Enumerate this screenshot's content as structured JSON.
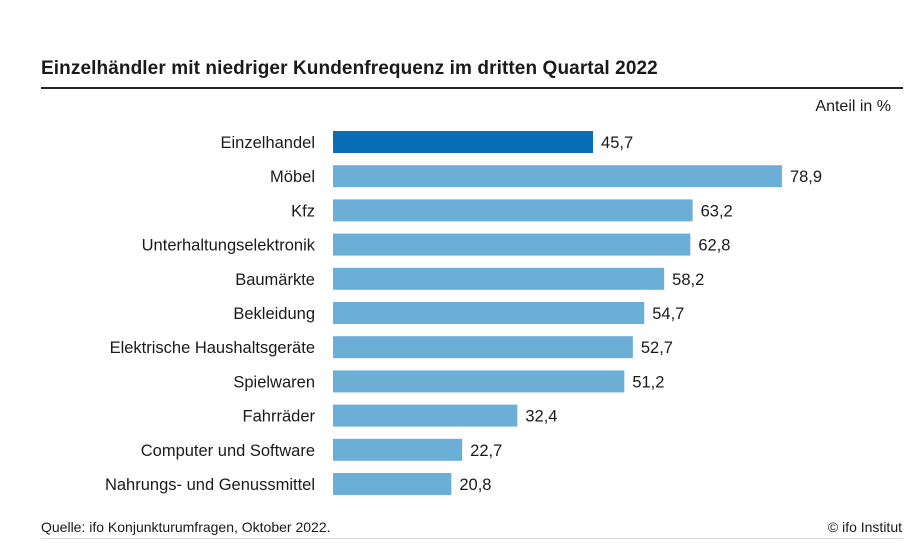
{
  "chart_data": {
    "type": "bar",
    "orientation": "horizontal",
    "title": "Einzelhändler mit niedriger Kundenfrequenz im dritten Quartal 2022",
    "unit_label": "Anteil in %",
    "categories": [
      "Einzelhandel",
      "Möbel",
      "Kfz",
      "Unterhaltungselektronik",
      "Baumärkte",
      "Bekleidung",
      "Elektrische Haushaltsgeräte",
      "Spielwaren",
      "Fahrräder",
      "Computer und Software",
      "Nahrungs- und Genussmittel"
    ],
    "values": [
      45.7,
      78.9,
      63.2,
      62.8,
      58.2,
      54.7,
      52.7,
      51.2,
      32.4,
      22.7,
      20.8
    ],
    "value_labels": [
      "45,7",
      "78,9",
      "63,2",
      "62,8",
      "58,2",
      "54,7",
      "52,7",
      "51,2",
      "32,4",
      "22,7",
      "20,8"
    ],
    "highlight_index": 0,
    "colors": {
      "highlight": "#0a6eb4",
      "bar": "#6baed6"
    },
    "xlim": [
      0,
      100
    ],
    "grid": false,
    "legend": "none",
    "source": "Quelle: ifo Konjunkturumfragen, Oktober 2022.",
    "copyright": "© ifo Institut"
  }
}
